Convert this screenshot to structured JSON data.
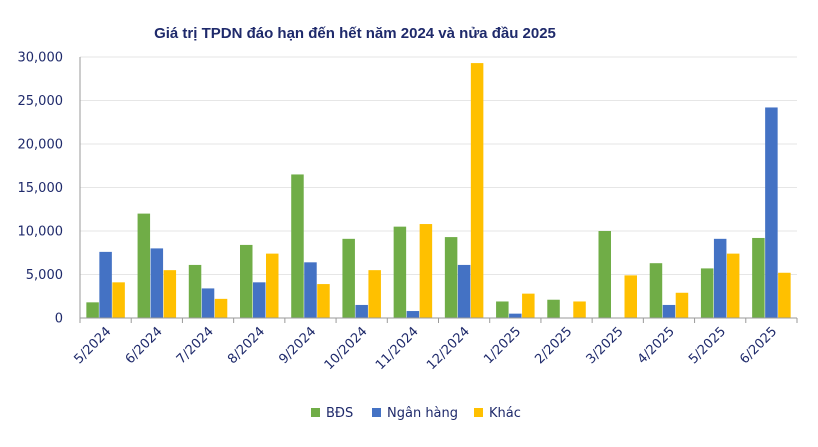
{
  "chart_data": {
    "type": "bar",
    "title": "Giá trị TPDN đáo hạn đến hết năm 2024 và nửa đầu 2025",
    "xlabel": "",
    "ylabel": "",
    "ylim": [
      0,
      30000
    ],
    "yticks": [
      0,
      5000,
      10000,
      15000,
      20000,
      25000,
      30000
    ],
    "ytick_labels": [
      "0",
      "5,000",
      "10,000",
      "15,000",
      "20,000",
      "25,000",
      "30,000"
    ],
    "grid": true,
    "legend_position": "bottom",
    "categories": [
      "5/2024",
      "6/2024",
      "7/2024",
      "8/2024",
      "9/2024",
      "10/2024",
      "11/2024",
      "12/2024",
      "1/2025",
      "2/2025",
      "3/2025",
      "4/2025",
      "5/2025",
      "6/2025"
    ],
    "series": [
      {
        "name": "BĐS",
        "color": "#70ad47",
        "values": [
          1800,
          12000,
          6100,
          8400,
          16500,
          9100,
          10500,
          9300,
          1900,
          2100,
          10000,
          6300,
          5700,
          9200
        ]
      },
      {
        "name": "Ngân hàng",
        "color": "#4472c4",
        "values": [
          7600,
          8000,
          3400,
          4100,
          6400,
          1500,
          800,
          6100,
          500,
          0,
          0,
          1500,
          9100,
          24200
        ]
      },
      {
        "name": "Khác",
        "color": "#ffc000",
        "values": [
          4100,
          5500,
          2200,
          7400,
          3900,
          5500,
          10800,
          29300,
          2800,
          1900,
          4900,
          2900,
          7400,
          5200
        ]
      }
    ]
  }
}
